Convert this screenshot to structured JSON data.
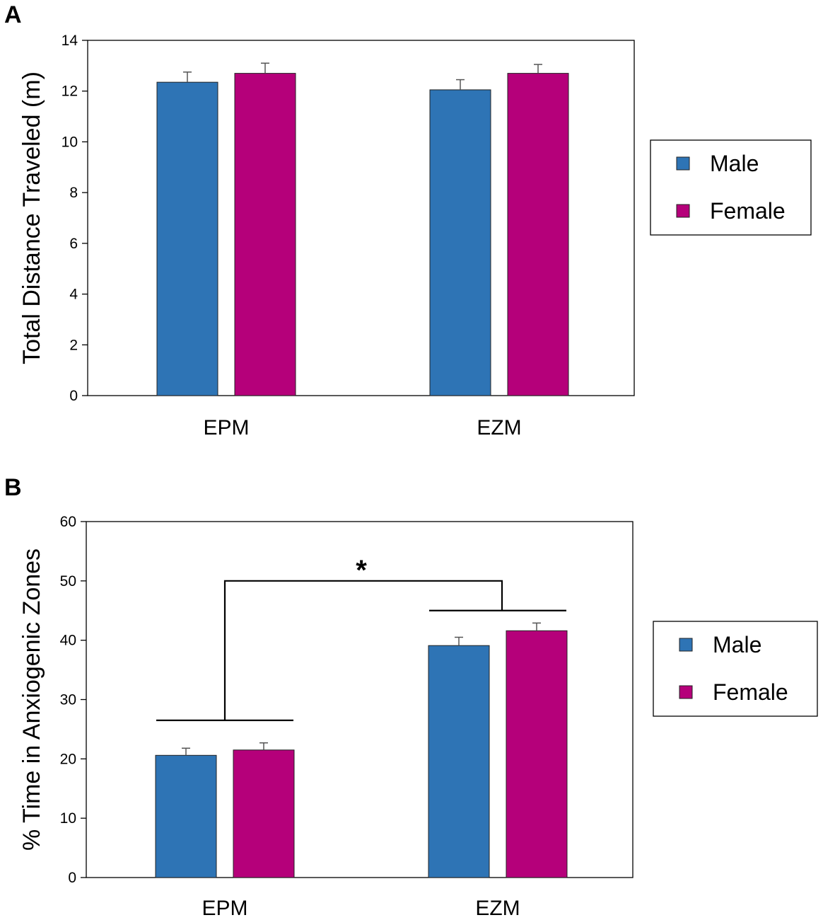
{
  "colors": {
    "male": "#2E74B5",
    "female": "#B5007A",
    "axis": "#000000",
    "errorbar": "#555555"
  },
  "legend_labels": [
    "Male",
    "Female"
  ],
  "chart_data": [
    {
      "panel_label": "A",
      "type": "bar",
      "categories": [
        "EPM",
        "EZM"
      ],
      "series": [
        {
          "name": "Male",
          "values": [
            12.35,
            12.05
          ],
          "errors": [
            0.4,
            0.4
          ]
        },
        {
          "name": "Female",
          "values": [
            12.7,
            12.7
          ],
          "errors": [
            0.4,
            0.35
          ]
        }
      ],
      "ylabel": "Total Distance Traveled (m)",
      "xlabel": "",
      "ylim": [
        0,
        14
      ],
      "yticks": [
        0,
        2,
        4,
        6,
        8,
        10,
        12,
        14
      ],
      "legend_position": "right",
      "annotations": []
    },
    {
      "panel_label": "B",
      "type": "bar",
      "categories": [
        "EPM",
        "EZM"
      ],
      "series": [
        {
          "name": "Male",
          "values": [
            20.6,
            39.1
          ],
          "errors": [
            1.2,
            1.4
          ]
        },
        {
          "name": "Female",
          "values": [
            21.5,
            41.6
          ],
          "errors": [
            1.2,
            1.3
          ]
        }
      ],
      "ylabel": "% Time in Anxiogenic Zones",
      "xlabel": "",
      "ylim": [
        0,
        60
      ],
      "yticks": [
        0,
        10,
        20,
        30,
        40,
        50,
        60
      ],
      "legend_position": "right",
      "annotations": [
        {
          "type": "significance",
          "text": "*",
          "between": [
            "EPM",
            "EZM"
          ],
          "group_line_y": [
            26.5,
            45
          ],
          "bracket_y": 50
        }
      ]
    }
  ]
}
